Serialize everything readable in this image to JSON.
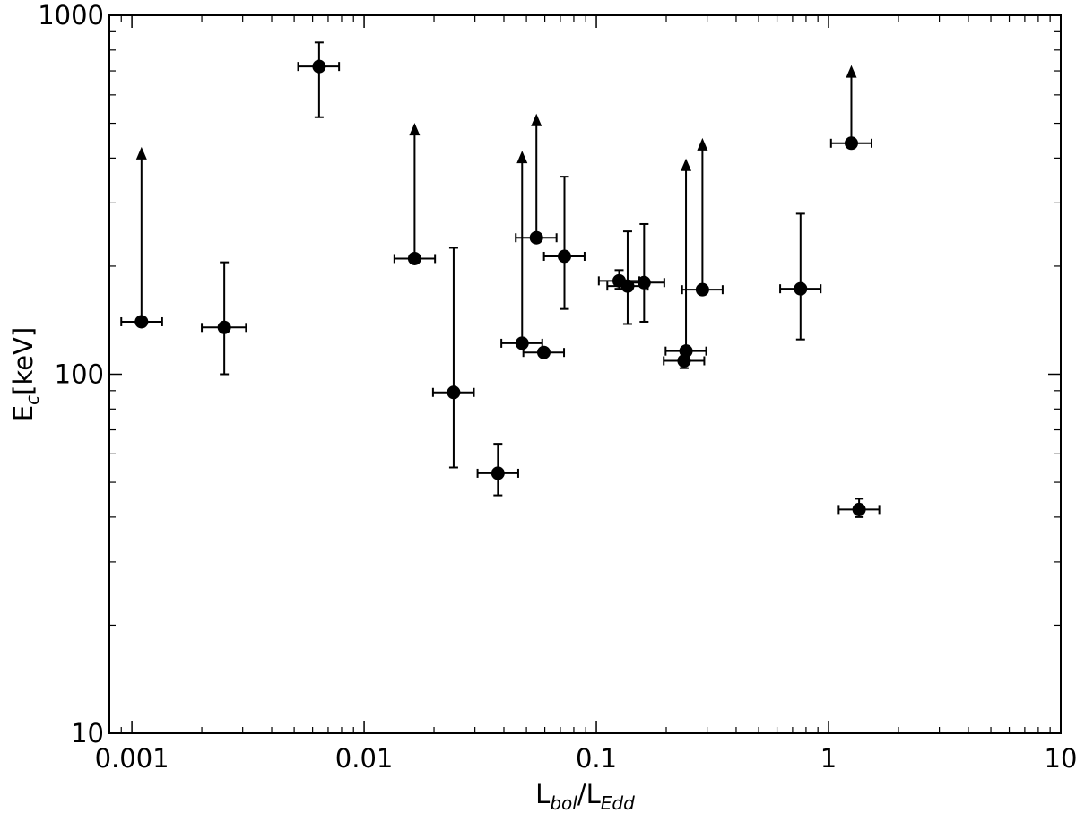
{
  "chart_data": {
    "type": "scatter",
    "title": "",
    "xlabel": {
      "main1": "L",
      "sub1": "bol",
      "sep": "/",
      "main2": "L",
      "sub2": "Edd"
    },
    "ylabel": {
      "main": "E",
      "sub": "c",
      "rest": "[keV]"
    },
    "xscale": "log",
    "yscale": "log",
    "xlim": [
      0.0008,
      10
    ],
    "ylim": [
      10,
      1000
    ],
    "xticks": [
      {
        "value": 0.001,
        "label": "0.001"
      },
      {
        "value": 0.01,
        "label": "0.01"
      },
      {
        "value": 0.1,
        "label": "0.1"
      },
      {
        "value": 1,
        "label": "1"
      },
      {
        "value": 10,
        "label": "10"
      }
    ],
    "yticks": [
      {
        "value": 10,
        "label": "10"
      },
      {
        "value": 100,
        "label": "100"
      },
      {
        "value": 1000,
        "label": "1000"
      }
    ],
    "grid": false,
    "legend": "none",
    "marker_color": "#000000",
    "points": [
      {
        "x": 0.0011,
        "xerr": [
          0.0009,
          0.00135
        ],
        "y": 140,
        "lower_limit": true,
        "arrow_to": 420
      },
      {
        "x": 0.0025,
        "xerr": [
          0.002,
          0.0031
        ],
        "y": 135,
        "yerr": [
          100,
          205
        ]
      },
      {
        "x": 0.0064,
        "xerr": [
          0.0052,
          0.0078
        ],
        "y": 720,
        "yerr": [
          520,
          840
        ]
      },
      {
        "x": 0.0165,
        "xerr": [
          0.0135,
          0.0202
        ],
        "y": 210,
        "lower_limit": true,
        "arrow_to": 490
      },
      {
        "x": 0.0243,
        "xerr": [
          0.0198,
          0.0297
        ],
        "y": 89,
        "yerr": [
          55,
          225
        ]
      },
      {
        "x": 0.0377,
        "xerr": [
          0.0308,
          0.0461
        ],
        "y": 53,
        "yerr": [
          46,
          64
        ]
      },
      {
        "x": 0.0479,
        "xerr": [
          0.039,
          0.0585
        ],
        "y": 122,
        "lower_limit": true,
        "arrow_to": 410
      },
      {
        "x": 0.0552,
        "xerr": [
          0.045,
          0.0674
        ],
        "y": 240,
        "lower_limit": true,
        "arrow_to": 520
      },
      {
        "x": 0.0594,
        "xerr": [
          0.0485,
          0.0726
        ],
        "y": 115
      },
      {
        "x": 0.0729,
        "xerr": [
          0.0595,
          0.089
        ],
        "y": 213,
        "yerr": [
          152,
          355
        ]
      },
      {
        "x": 0.1254,
        "xerr": [
          0.1025,
          0.1532
        ],
        "y": 182,
        "yerr": [
          173,
          195
        ]
      },
      {
        "x": 0.1364,
        "xerr": [
          0.1115,
          0.1666
        ],
        "y": 176,
        "yerr": [
          138,
          250
        ]
      },
      {
        "x": 0.1606,
        "xerr": [
          0.1312,
          0.1962
        ],
        "y": 180,
        "yerr": [
          140,
          262
        ]
      },
      {
        "x": 0.2387,
        "xerr": [
          0.1951,
          0.2916
        ],
        "y": 109,
        "yerr": [
          104,
          116
        ]
      },
      {
        "x": 0.2433,
        "xerr": [
          0.1988,
          0.2972
        ],
        "y": 116,
        "lower_limit": true,
        "arrow_to": 390
      },
      {
        "x": 0.2864,
        "xerr": [
          0.2341,
          0.3499
        ],
        "y": 172,
        "lower_limit": true,
        "arrow_to": 445
      },
      {
        "x": 0.7576,
        "xerr": [
          0.619,
          0.925
        ],
        "y": 173,
        "yerr": [
          125,
          280
        ]
      },
      {
        "x": 1.254,
        "xerr": [
          1.025,
          1.532
        ],
        "y": 440,
        "lower_limit": true,
        "arrow_to": 710
      },
      {
        "x": 1.354,
        "xerr": [
          1.106,
          1.654
        ],
        "y": 42,
        "yerr": [
          40,
          45
        ]
      }
    ]
  }
}
